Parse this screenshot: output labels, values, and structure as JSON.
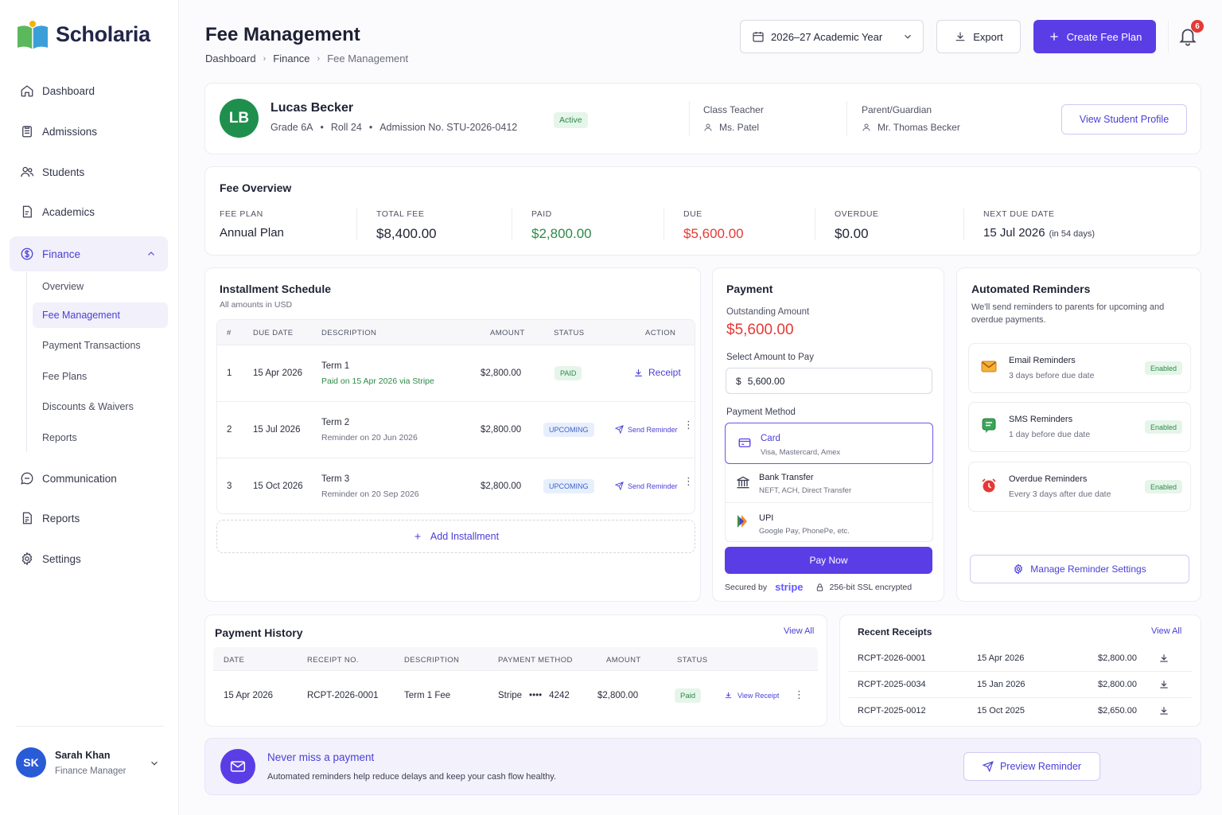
{
  "app": {
    "name": "Scholaria"
  },
  "sidebar": {
    "items": [
      {
        "label": "Dashboard",
        "icon": "home-icon"
      },
      {
        "label": "Admissions",
        "icon": "clipboard-icon"
      },
      {
        "label": "Students",
        "icon": "users-icon"
      },
      {
        "label": "Academics",
        "icon": "document-icon"
      },
      {
        "label": "Finance",
        "icon": "dollar-icon"
      },
      {
        "label": "Communication",
        "icon": "chat-icon"
      },
      {
        "label": "Reports",
        "icon": "report-icon"
      },
      {
        "label": "Settings",
        "icon": "gear-icon"
      }
    ],
    "finance_sub": [
      "Overview",
      "Fee Management",
      "Payment Transactions",
      "Fee Plans",
      "Discounts & Waivers",
      "Reports"
    ],
    "user": {
      "initials": "SK",
      "name": "Sarah Khan",
      "role": "Finance Manager"
    }
  },
  "header": {
    "title": "Fee Management",
    "breadcrumbs": [
      "Dashboard",
      "Finance",
      "Fee Management"
    ],
    "year_select": "2026–27 Academic Year",
    "export_label": "Export",
    "create_label": "Create Fee Plan",
    "notification_count": "6"
  },
  "student": {
    "initials": "LB",
    "name": "Lucas Becker",
    "grade": "Grade 6A",
    "roll": "Roll 24",
    "admission": "Admission No. STU-2026-0412",
    "status": "Active",
    "teacher_label": "Class Teacher",
    "teacher": "Ms. Patel",
    "parent_label": "Parent/Guardian",
    "parent": "Mr. Thomas Becker",
    "profile_button": "View Student Profile"
  },
  "overview": {
    "title": "Fee Overview",
    "items": [
      {
        "label": "FEE PLAN",
        "value": "Annual Plan"
      },
      {
        "label": "TOTAL FEE",
        "value": "$8,400.00"
      },
      {
        "label": "PAID",
        "value": "$2,800.00"
      },
      {
        "label": "DUE",
        "value": "$5,600.00"
      },
      {
        "label": "OVERDUE",
        "value": "$0.00"
      },
      {
        "label": "NEXT DUE DATE",
        "value": "15 Jul 2026",
        "note": "(in 54 days)"
      }
    ]
  },
  "installments": {
    "title": "Installment Schedule",
    "subtitle": "All amounts in USD",
    "columns": [
      "#",
      "DUE DATE",
      "DESCRIPTION",
      "AMOUNT",
      "STATUS",
      "ACTION"
    ],
    "rows": [
      {
        "num": "1",
        "date": "15 Apr 2026",
        "desc": "Term 1",
        "note": "Paid on 15 Apr 2026 via Stripe",
        "amount": "$2,800.00",
        "status": "PAID",
        "action": "Receipt"
      },
      {
        "num": "2",
        "date": "15 Jul 2026",
        "desc": "Term 2",
        "note": "Reminder on 20 Jun 2026",
        "amount": "$2,800.00",
        "status": "UPCOMING",
        "action": "Send Reminder"
      },
      {
        "num": "3",
        "date": "15 Oct 2026",
        "desc": "Term 3",
        "note": "Reminder on 20 Sep 2026",
        "amount": "$2,800.00",
        "status": "UPCOMING",
        "action": "Send Reminder"
      }
    ],
    "add_label": "Add Installment"
  },
  "payment": {
    "title": "Payment",
    "outstanding_label": "Outstanding Amount",
    "outstanding": "$5,600.00",
    "select_label": "Select Amount to Pay",
    "currency": "$",
    "amount_value": "5,600.00",
    "method_label": "Payment Method",
    "methods": [
      {
        "name": "Card",
        "desc": "Visa, Mastercard, Amex"
      },
      {
        "name": "Bank Transfer",
        "desc": "NEFT, ACH, Direct Transfer"
      },
      {
        "name": "UPI",
        "desc": "Google Pay, PhonePe, etc."
      }
    ],
    "pay_button": "Pay Now",
    "secured_by": "Secured by",
    "stripe": "stripe",
    "ssl": "256-bit SSL encrypted"
  },
  "reminders": {
    "title": "Automated Reminders",
    "desc": "We'll send reminders to parents for upcoming and overdue payments.",
    "items": [
      {
        "name": "Email Reminders",
        "detail": "3 days before due date",
        "status": "Enabled"
      },
      {
        "name": "SMS Reminders",
        "detail": "1 day before due date",
        "status": "Enabled"
      },
      {
        "name": "Overdue Reminders",
        "detail": "Every 3 days after due date",
        "status": "Enabled"
      }
    ],
    "manage_button": "Manage Reminder Settings"
  },
  "history": {
    "title": "Payment History",
    "view_all": "View All",
    "columns": [
      "DATE",
      "RECEIPT NO.",
      "DESCRIPTION",
      "PAYMENT METHOD",
      "AMOUNT",
      "STATUS"
    ],
    "rows": [
      {
        "date": "15 Apr 2026",
        "receipt": "RCPT-2026-0001",
        "desc": "Term 1 Fee",
        "method": "Stripe",
        "dots": "••••",
        "last4": "4242",
        "amount": "$2,800.00",
        "status": "Paid",
        "action": "View Receipt"
      }
    ]
  },
  "receipts": {
    "title": "Recent Receipts",
    "view_all": "View All",
    "rows": [
      {
        "id": "RCPT-2026-0001",
        "date": "15 Apr 2026",
        "amount": "$2,800.00"
      },
      {
        "id": "RCPT-2025-0034",
        "date": "15 Jan 2026",
        "amount": "$2,800.00"
      },
      {
        "id": "RCPT-2025-0012",
        "date": "15 Oct 2025",
        "amount": "$2,650.00"
      }
    ]
  },
  "banner": {
    "title": "Never miss a payment",
    "desc": "Automated reminders help reduce delays and keep your cash flow healthy.",
    "button": "Preview Reminder"
  },
  "colors": {
    "accent": "#5b3de6",
    "green": "#2e8a48",
    "red": "#e53935",
    "avatar_green": "#1f8f4e",
    "avatar_blue": "#2a5bd7"
  }
}
